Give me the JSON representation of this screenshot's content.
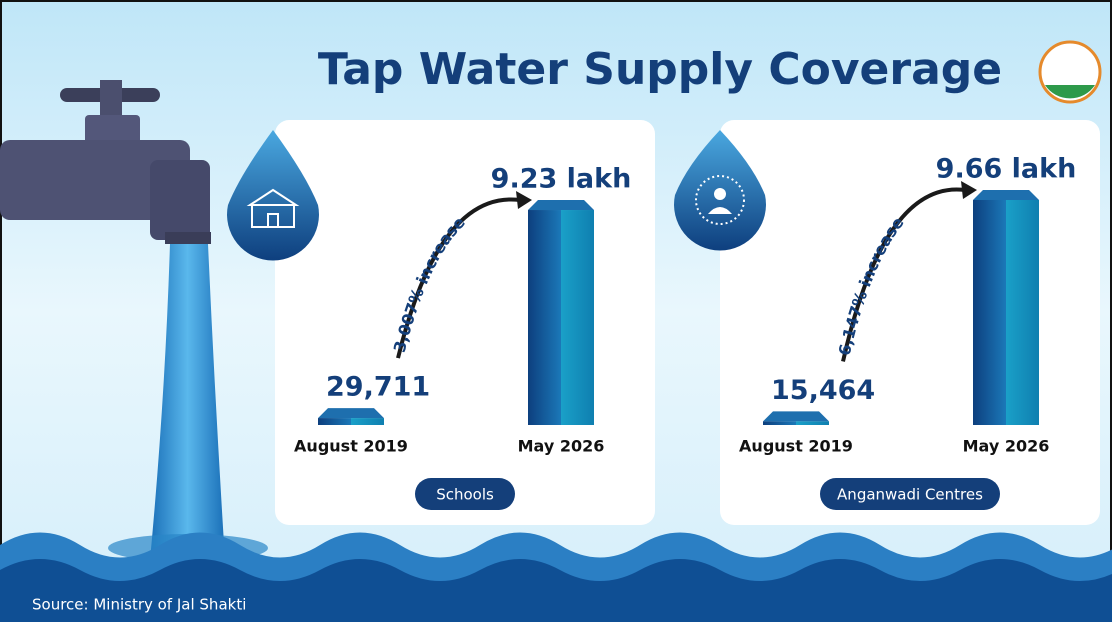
{
  "title": "Tap Water Supply Coverage",
  "source": "Source: Ministry of Jal Shakti",
  "chart_data": [
    {
      "type": "bar",
      "title": "Schools",
      "categories": [
        "August 2019",
        "May 2026"
      ],
      "values": [
        29711,
        923000
      ],
      "value_labels": [
        "29,711",
        "9.23 lakh"
      ],
      "annotation": "3,007% increase",
      "color": "#0e4f8f"
    },
    {
      "type": "bar",
      "title": "Anganwadi Centres",
      "categories": [
        "August 2019",
        "May 2026"
      ],
      "values": [
        15464,
        966000
      ],
      "value_labels": [
        "15,464",
        "9.66 lakh"
      ],
      "annotation": "6,147% increase",
      "color": "#0e4f8f"
    }
  ]
}
